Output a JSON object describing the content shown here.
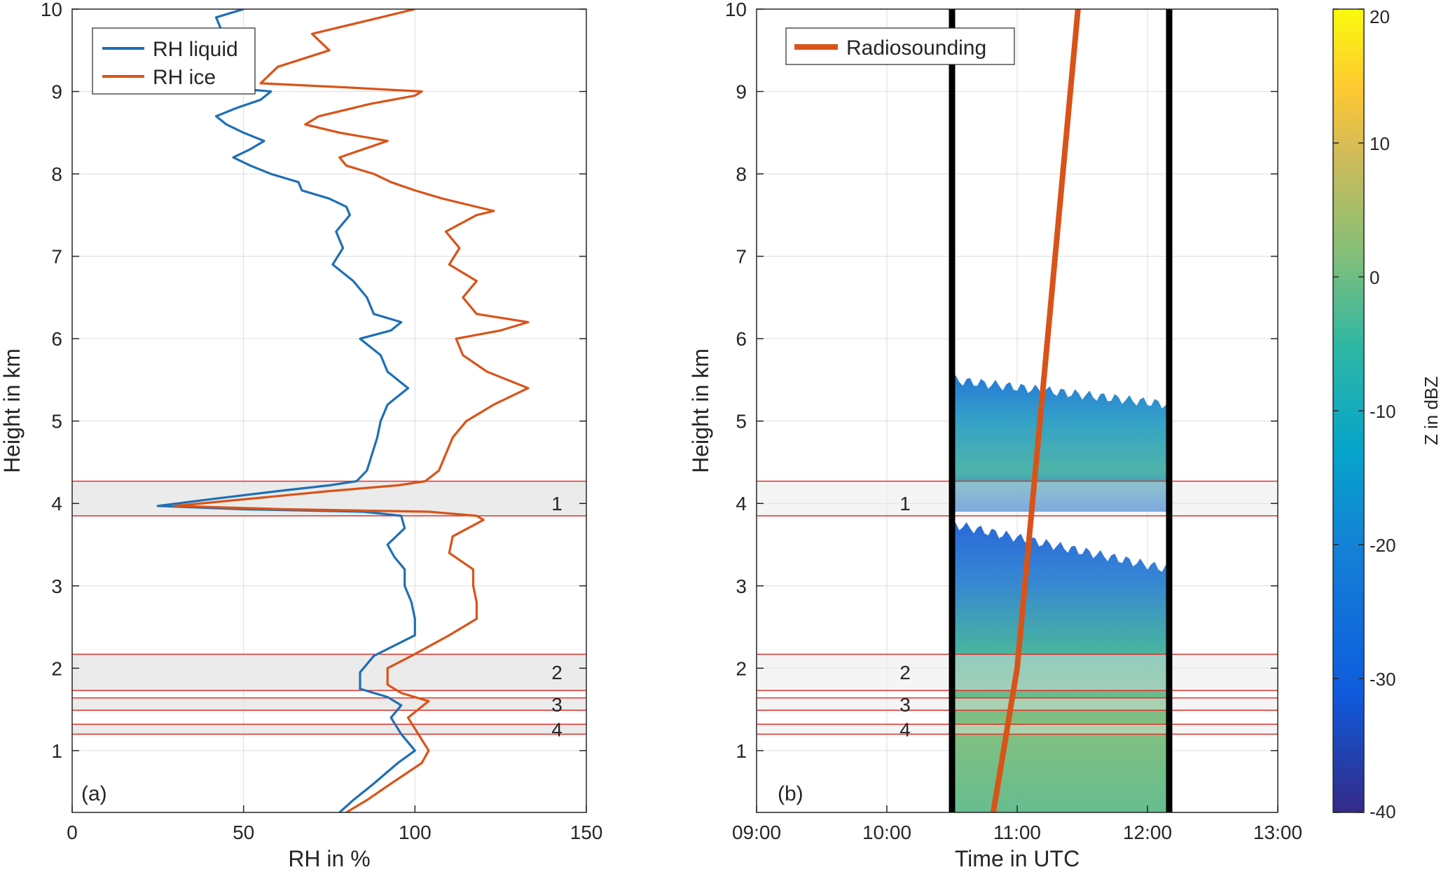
{
  "colors": {
    "rh_liquid": "#1f6fb4",
    "rh_ice": "#d95319",
    "radiosounding": "#d95319",
    "band_fill": "#e8e8e8",
    "band_edge": "#e0302a",
    "grid": "#dcdcdc",
    "axis": "#262626"
  },
  "bands": [
    {
      "label": "1",
      "bottom": 3.85,
      "top": 4.27,
      "label_y": 4.0
    },
    {
      "label": "2",
      "bottom": 1.73,
      "top": 2.17,
      "label_y": 1.95
    },
    {
      "label": "3",
      "bottom": 1.49,
      "top": 1.64,
      "label_y": 1.56
    },
    {
      "label": "4",
      "bottom": 1.2,
      "top": 1.32,
      "label_y": 1.26
    }
  ],
  "chart_data": [
    {
      "type": "line",
      "panel_label": "(a)",
      "xlabel": "RH in %",
      "ylabel": "Height in km",
      "xlim": [
        0,
        150
      ],
      "ylim": [
        0.25,
        10
      ],
      "xticks": [
        "0",
        "50",
        "100",
        "150"
      ],
      "yticks": [
        "1",
        "2",
        "3",
        "4",
        "5",
        "6",
        "7",
        "8",
        "9",
        "10"
      ],
      "grid": true,
      "legend": {
        "placement": "top-left",
        "entries": [
          "RH liquid",
          "RH ice"
        ]
      },
      "series": [
        {
          "name": "RH liquid",
          "points": [
            [
              78,
              0.25
            ],
            [
              82,
              0.4
            ],
            [
              88,
              0.6
            ],
            [
              95,
              0.85
            ],
            [
              100,
              1.0
            ],
            [
              96,
              1.2
            ],
            [
              93,
              1.4
            ],
            [
              96,
              1.55
            ],
            [
              92,
              1.65
            ],
            [
              84,
              1.75
            ],
            [
              84,
              1.95
            ],
            [
              88,
              2.15
            ],
            [
              100,
              2.4
            ],
            [
              100,
              2.6
            ],
            [
              99,
              2.8
            ],
            [
              97,
              3.0
            ],
            [
              97,
              3.2
            ],
            [
              94,
              3.35
            ],
            [
              92,
              3.5
            ],
            [
              97,
              3.7
            ],
            [
              96,
              3.85
            ],
            [
              85,
              3.9
            ],
            [
              50,
              3.93
            ],
            [
              25,
              3.97
            ],
            [
              40,
              4.05
            ],
            [
              60,
              4.15
            ],
            [
              75,
              4.22
            ],
            [
              83,
              4.27
            ],
            [
              86,
              4.4
            ],
            [
              89,
              4.8
            ],
            [
              90,
              5.0
            ],
            [
              92,
              5.2
            ],
            [
              98,
              5.4
            ],
            [
              92,
              5.6
            ],
            [
              90,
              5.8
            ],
            [
              84,
              6.0
            ],
            [
              93,
              6.1
            ],
            [
              96,
              6.2
            ],
            [
              88,
              6.3
            ],
            [
              86,
              6.5
            ],
            [
              82,
              6.7
            ],
            [
              76,
              6.9
            ],
            [
              79,
              7.1
            ],
            [
              77,
              7.3
            ],
            [
              81,
              7.5
            ],
            [
              80,
              7.6
            ],
            [
              75,
              7.7
            ],
            [
              67,
              7.8
            ],
            [
              66,
              7.9
            ],
            [
              58,
              8.0
            ],
            [
              52,
              8.1
            ],
            [
              47,
              8.2
            ],
            [
              52,
              8.3
            ],
            [
              56,
              8.4
            ],
            [
              50,
              8.5
            ],
            [
              45,
              8.6
            ],
            [
              42,
              8.7
            ],
            [
              48,
              8.8
            ],
            [
              55,
              8.9
            ],
            [
              58,
              9.0
            ],
            [
              45,
              9.05
            ],
            [
              40,
              9.3
            ],
            [
              44,
              9.7
            ],
            [
              42,
              9.9
            ],
            [
              50,
              10.0
            ]
          ]
        },
        {
          "name": "RH ice",
          "points": [
            [
              80,
              0.25
            ],
            [
              86,
              0.4
            ],
            [
              93,
              0.6
            ],
            [
              102,
              0.85
            ],
            [
              104,
              1.0
            ],
            [
              101,
              1.2
            ],
            [
              98,
              1.4
            ],
            [
              104,
              1.6
            ],
            [
              96,
              1.7
            ],
            [
              92,
              1.8
            ],
            [
              92,
              2.0
            ],
            [
              99,
              2.15
            ],
            [
              110,
              2.4
            ],
            [
              118,
              2.6
            ],
            [
              118,
              2.8
            ],
            [
              117,
              3.0
            ],
            [
              117,
              3.2
            ],
            [
              110,
              3.4
            ],
            [
              111,
              3.6
            ],
            [
              120,
              3.8
            ],
            [
              118,
              3.85
            ],
            [
              104,
              3.9
            ],
            [
              62,
              3.93
            ],
            [
              30,
              3.97
            ],
            [
              50,
              4.05
            ],
            [
              75,
              4.15
            ],
            [
              95,
              4.22
            ],
            [
              103,
              4.27
            ],
            [
              107,
              4.4
            ],
            [
              111,
              4.8
            ],
            [
              115,
              5.0
            ],
            [
              123,
              5.2
            ],
            [
              133,
              5.4
            ],
            [
              121,
              5.6
            ],
            [
              114,
              5.8
            ],
            [
              112,
              6.0
            ],
            [
              125,
              6.1
            ],
            [
              133,
              6.2
            ],
            [
              118,
              6.3
            ],
            [
              114,
              6.5
            ],
            [
              118,
              6.7
            ],
            [
              110,
              6.9
            ],
            [
              113,
              7.1
            ],
            [
              109,
              7.3
            ],
            [
              118,
              7.5
            ],
            [
              123,
              7.55
            ],
            [
              108,
              7.7
            ],
            [
              100,
              7.8
            ],
            [
              93,
              7.9
            ],
            [
              88,
              8.0
            ],
            [
              80,
              8.1
            ],
            [
              78,
              8.2
            ],
            [
              85,
              8.3
            ],
            [
              92,
              8.4
            ],
            [
              78,
              8.5
            ],
            [
              68,
              8.6
            ],
            [
              72,
              8.7
            ],
            [
              87,
              8.85
            ],
            [
              100,
              8.95
            ],
            [
              102,
              9.0
            ],
            [
              80,
              9.05
            ],
            [
              55,
              9.1
            ],
            [
              60,
              9.3
            ],
            [
              75,
              9.5
            ],
            [
              70,
              9.7
            ],
            [
              90,
              9.9
            ],
            [
              100,
              10.0
            ]
          ]
        }
      ]
    },
    {
      "type": "heatmap",
      "panel_label": "(b)",
      "xlabel": "Time in UTC",
      "ylabel": "Height in km",
      "xlim": [
        "09:00",
        "13:00"
      ],
      "ylim": [
        0.25,
        10
      ],
      "xticks": [
        "09:00",
        "10:00",
        "11:00",
        "12:00",
        "13:00"
      ],
      "yticks": [
        "1",
        "2",
        "3",
        "4",
        "5",
        "6",
        "7",
        "8",
        "9",
        "10"
      ],
      "grid": true,
      "colorbar": {
        "label": "Z in dBZ",
        "range": [
          -40,
          20
        ],
        "ticks": [
          "-40",
          "-30",
          "-20",
          "-10",
          "0",
          "10",
          "20"
        ]
      },
      "period_markers": [
        "10:30",
        "12:10"
      ],
      "legend": {
        "placement": "top-left",
        "entries": [
          "Radiosounding"
        ]
      },
      "radiosounding": {
        "name": "Radiosounding",
        "points": [
          [
            "10:49",
            0.25
          ],
          [
            "11:00",
            2.0
          ],
          [
            "11:07",
            4.0
          ],
          [
            "11:14",
            6.0
          ],
          [
            "11:28",
            10.0
          ]
        ]
      },
      "echo_layers": [
        {
          "start": "10:30",
          "end": "12:10",
          "base_km": 3.9,
          "top_km_start": 5.5,
          "top_km_end": 5.2,
          "dbz_range": [
            -35,
            -15
          ]
        },
        {
          "start": "10:30",
          "end": "12:10",
          "base_km": 0.25,
          "top_km_start": 3.75,
          "top_km_end": 3.2,
          "dbz_range": [
            -35,
            -5
          ]
        }
      ]
    }
  ]
}
